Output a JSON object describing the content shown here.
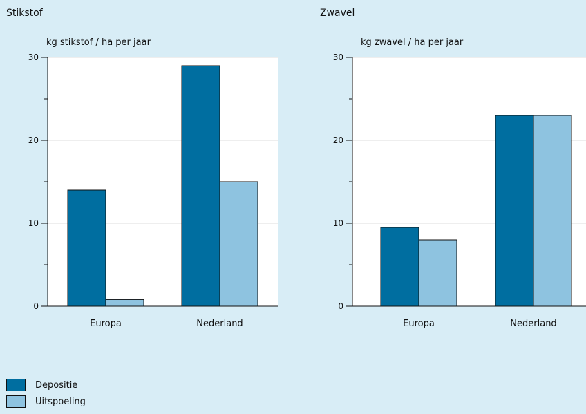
{
  "chart_data": [
    {
      "type": "bar",
      "title": "Stikstof",
      "ylabel": "kg stikstof / ha per jaar",
      "categories": [
        "Europa",
        "Nederland"
      ],
      "ylim": [
        0,
        30
      ],
      "yticks": [
        0,
        10,
        20,
        30
      ],
      "grid": true,
      "series": [
        {
          "name": "Depositie",
          "values": [
            14,
            29
          ],
          "color": "#006ea0"
        },
        {
          "name": "Uitspoeling",
          "values": [
            0.8,
            15
          ],
          "color": "#8ec3e0"
        }
      ]
    },
    {
      "type": "bar",
      "title": "Zwavel",
      "ylabel": "kg zwavel / ha per jaar",
      "categories": [
        "Europa",
        "Nederland"
      ],
      "ylim": [
        0,
        30
      ],
      "yticks": [
        0,
        10,
        20,
        30
      ],
      "grid": true,
      "series": [
        {
          "name": "Depositie",
          "values": [
            9.5,
            23
          ],
          "color": "#006ea0"
        },
        {
          "name": "Uitspoeling",
          "values": [
            8,
            23
          ],
          "color": "#8ec3e0"
        }
      ]
    }
  ],
  "legend": {
    "placement": "bottom-left",
    "items": [
      {
        "label": "Depositie",
        "color": "#006ea0"
      },
      {
        "label": "Uitspoeling",
        "color": "#8ec3e0"
      }
    ]
  }
}
